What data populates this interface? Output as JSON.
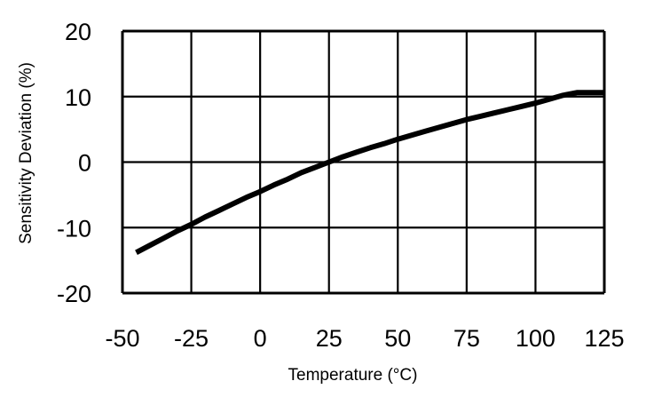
{
  "chart_data": {
    "type": "line",
    "title": "",
    "xlabel": "Temperature (°C)",
    "ylabel": "Sensitivity Deviation (%)",
    "xlim": [
      -50,
      125
    ],
    "ylim": [
      -20,
      20
    ],
    "x_ticks": [
      "-50",
      "-25",
      "0",
      "25",
      "50",
      "75",
      "100",
      "125"
    ],
    "y_ticks": [
      "20",
      "10",
      "0",
      "-10",
      "-20"
    ],
    "grid": true,
    "legend": "none",
    "line_color": "#000000",
    "series": [
      {
        "x": [
          -45,
          -40,
          -35,
          -30,
          -25,
          -20,
          -15,
          -10,
          -5,
          0,
          5,
          10,
          15,
          20,
          25,
          30,
          35,
          40,
          45,
          50,
          55,
          60,
          65,
          70,
          75,
          80,
          85,
          90,
          95,
          100,
          105,
          110,
          115,
          120,
          125
        ],
        "values": [
          -13.8,
          -12.7,
          -11.6,
          -10.5,
          -9.5,
          -8.4,
          -7.4,
          -6.4,
          -5.4,
          -4.5,
          -3.5,
          -2.6,
          -1.6,
          -0.8,
          0.0,
          0.8,
          1.5,
          2.2,
          2.8,
          3.5,
          4.1,
          4.7,
          5.3,
          5.9,
          6.5,
          7.0,
          7.5,
          8.0,
          8.5,
          9.0,
          9.6,
          10.2,
          10.6,
          10.6,
          10.6
        ]
      }
    ]
  }
}
